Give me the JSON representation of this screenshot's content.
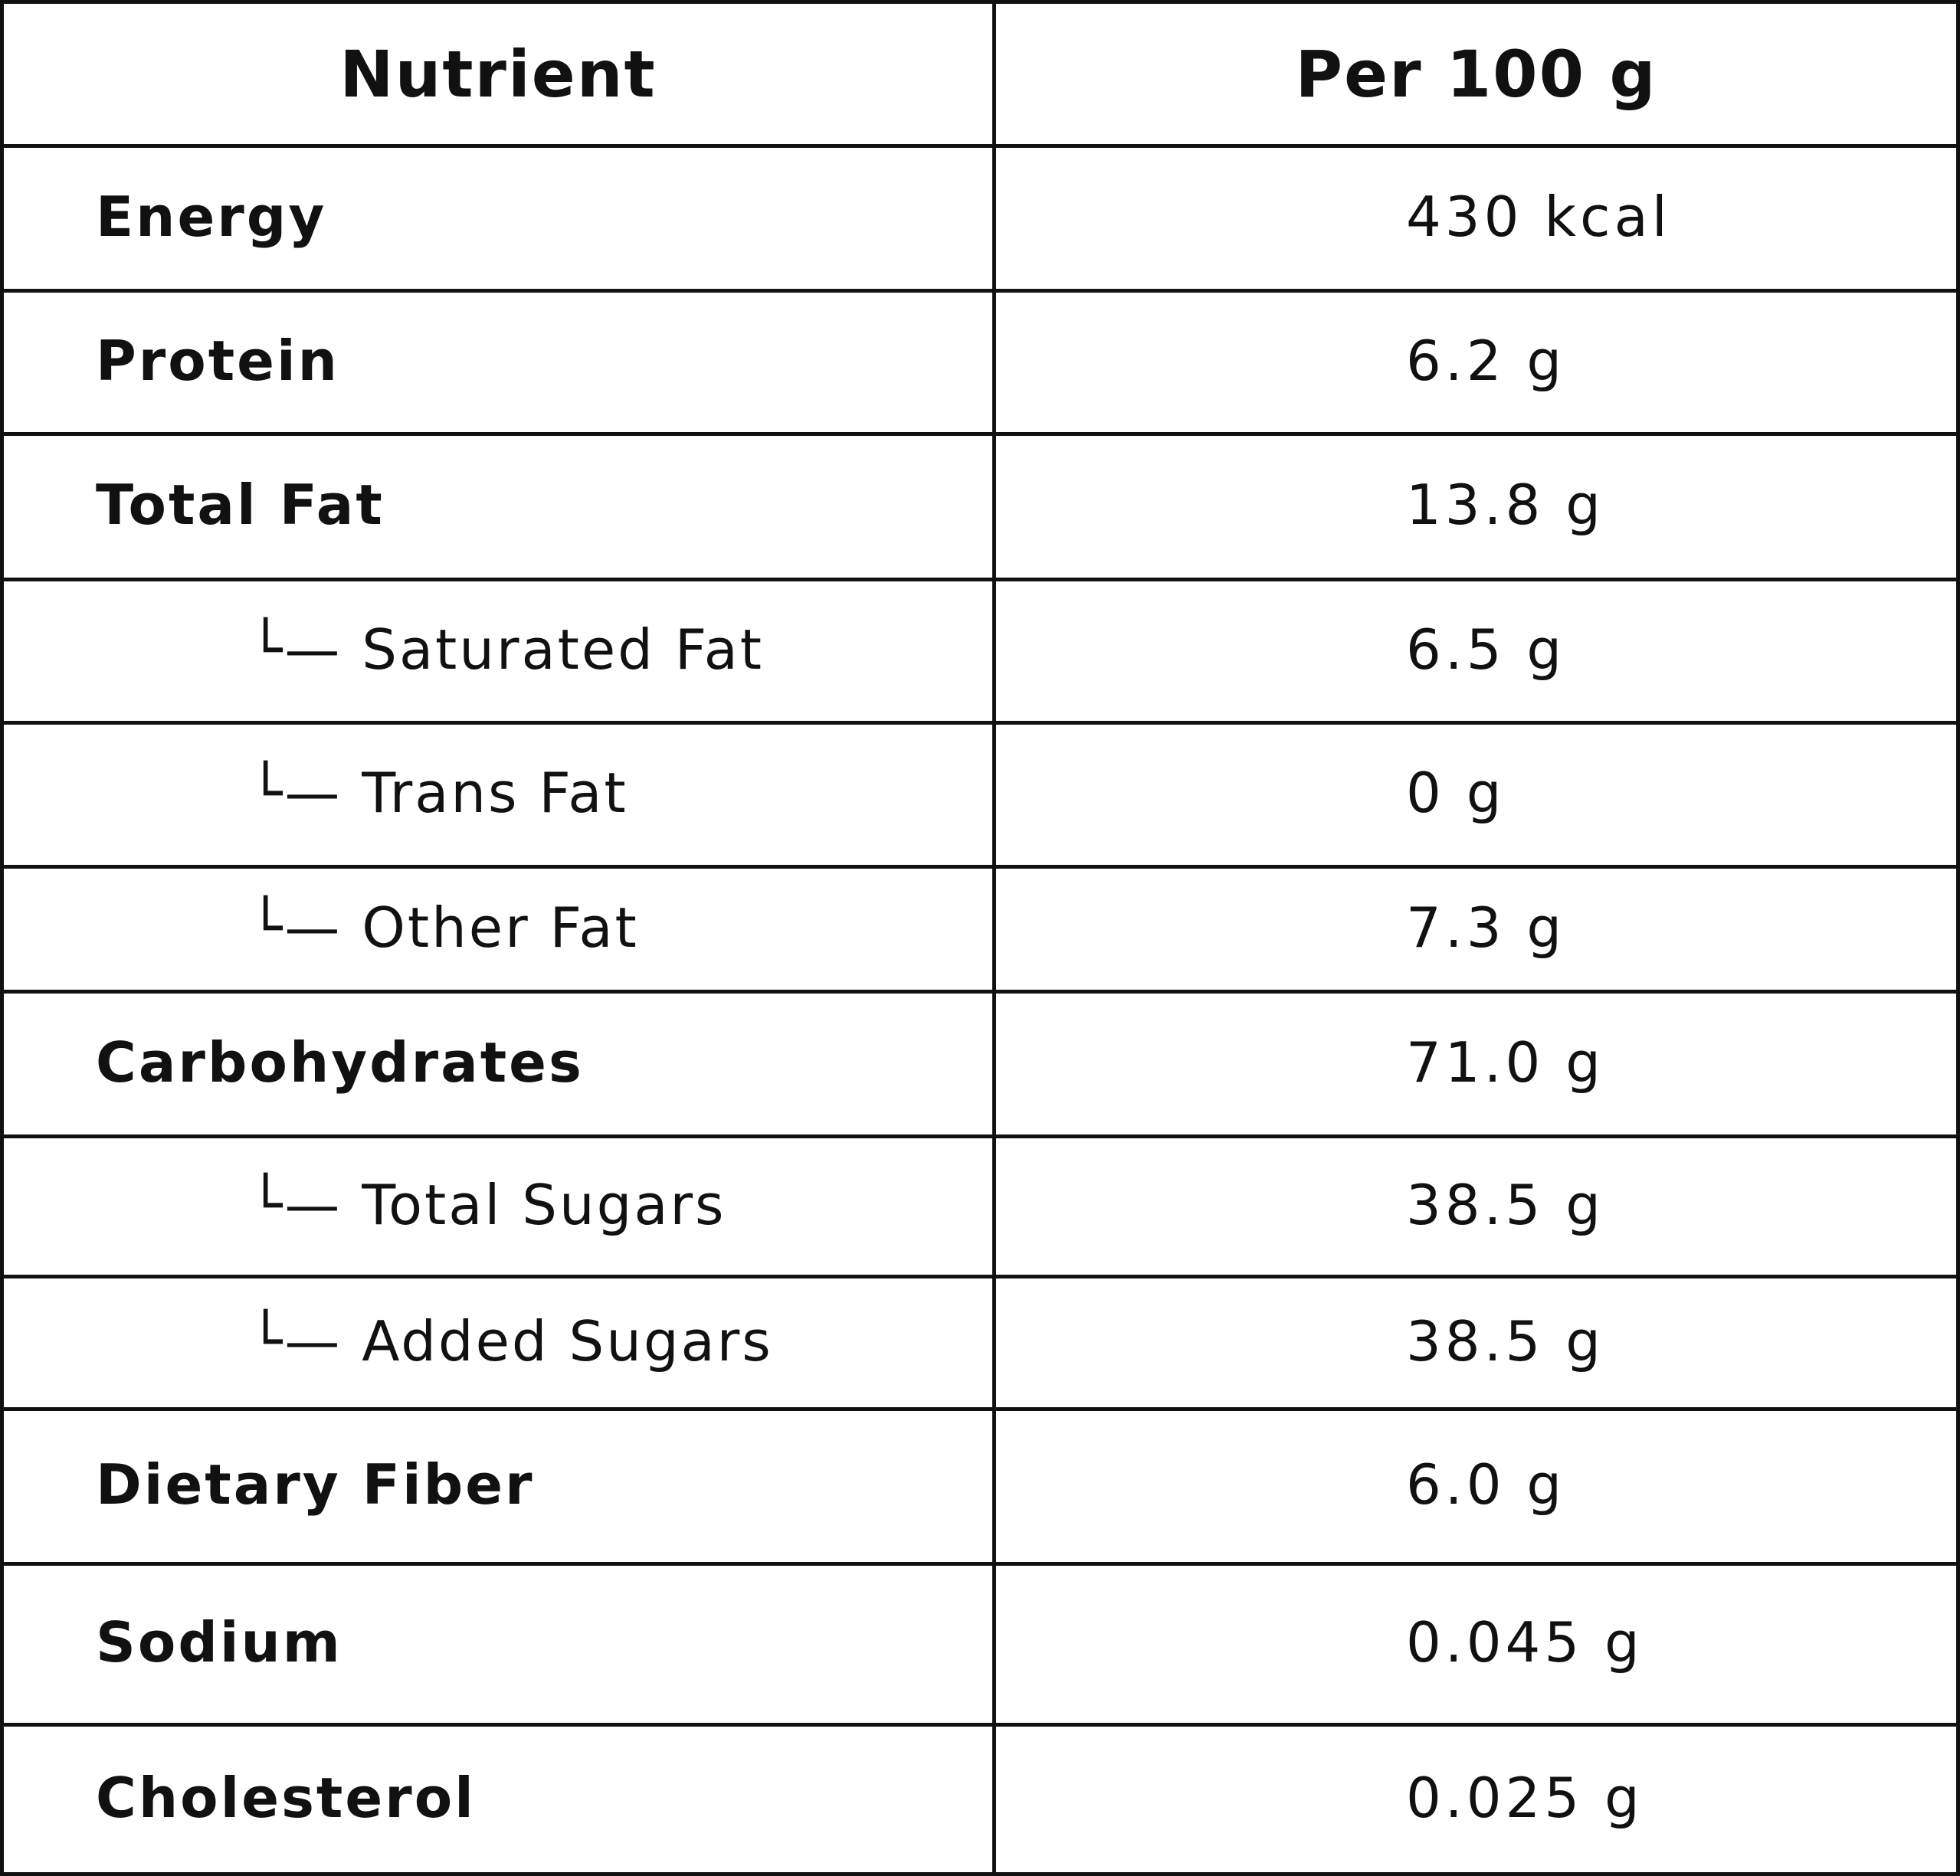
{
  "table": {
    "header": [
      "Nutrient",
      "Per 100 g"
    ],
    "rows": [
      [
        "Energy",
        "430 kcal"
      ],
      [
        "Protein",
        "6.2 g"
      ],
      [
        "Total Fat",
        "13.8 g"
      ],
      [
        "└— Saturated Fat",
        "6.5 g"
      ],
      [
        "└— Trans Fat",
        "0 g"
      ],
      [
        "└— Other Fat",
        "7.3 g"
      ],
      [
        "Carbohydrates",
        "71.0 g"
      ],
      [
        "└— Total Sugars",
        "38.5 g"
      ],
      [
        "└— Added Sugars",
        "38.5 g"
      ],
      [
        "Dietary Fiber",
        "6.0 g"
      ],
      [
        "Sodium",
        "0.045 g"
      ],
      [
        "Cholesterol",
        "0.025 g"
      ]
    ]
  }
}
